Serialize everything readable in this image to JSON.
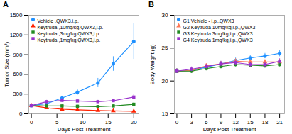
{
  "chart_data": [
    {
      "type": "line",
      "title": "A",
      "xlabel": "Days Post Treatment",
      "ylabel": "Tumor Size (mm³)",
      "xlim": [
        -0.5,
        21
      ],
      "ylim": [
        0,
        1500
      ],
      "xticks": [
        0,
        5,
        10,
        15,
        20
      ],
      "yticks": [
        0,
        300,
        600,
        900,
        1200,
        1500
      ],
      "legend": "upper left",
      "x": [
        0,
        3,
        6,
        9,
        13,
        16,
        20
      ],
      "series": [
        {
          "name": "Vehicle ,QWX3,i.p.",
          "color": "#1E90FF",
          "marker": "circle",
          "values": [
            125,
            155,
            240,
            330,
            470,
            760,
            1100
          ],
          "yerr": [
            15,
            20,
            30,
            45,
            70,
            110,
            270
          ]
        },
        {
          "name": "Keytruda ,10mg/kg,QWX3,i.p.",
          "color": "#FF2200",
          "marker": "triangle",
          "values": [
            125,
            90,
            70,
            60,
            50,
            45,
            40
          ],
          "yerr": [
            12,
            15,
            12,
            12,
            10,
            10,
            12
          ]
        },
        {
          "name": "Keytruda ,3mg/kg,QWX3,i.p.",
          "color": "#228B22",
          "marker": "square",
          "values": [
            125,
            120,
            120,
            115,
            110,
            120,
            145
          ],
          "yerr": [
            12,
            15,
            18,
            18,
            18,
            18,
            25
          ]
        },
        {
          "name": "Keytruda ,1mg/kg,QWX3,i.p.",
          "color": "#9932CC",
          "marker": "square",
          "values": [
            125,
            185,
            205,
            195,
            185,
            200,
            255
          ],
          "yerr": [
            12,
            22,
            28,
            22,
            22,
            25,
            38
          ]
        }
      ]
    },
    {
      "type": "line",
      "title": "B",
      "xlabel": "Days Post Treatment",
      "ylabel": "Body Weight (g)",
      "xlim": [
        -0.5,
        22
      ],
      "ylim": [
        15,
        30
      ],
      "xticks": [
        0,
        3,
        6,
        9,
        12,
        15,
        18,
        21
      ],
      "yticks": [
        15,
        20,
        25,
        30
      ],
      "legend": "upper left",
      "x": [
        0,
        3,
        6,
        9,
        12,
        15,
        18,
        21
      ],
      "series": [
        {
          "name": "G1 Vehicle - i.p.,QWX3",
          "color": "#1E90FF",
          "marker": "circle",
          "values": [
            21.5,
            21.6,
            22.1,
            22.6,
            23.1,
            23.5,
            23.8,
            24.2
          ],
          "yerr": [
            0.35,
            0.35,
            0.35,
            0.4,
            0.4,
            0.4,
            0.4,
            0.5
          ]
        },
        {
          "name": "G2 Keytruda 10mg/kg,i.p.,QWX3",
          "color": "#FF7755",
          "marker": "triangle",
          "values": [
            21.5,
            21.6,
            22.3,
            22.6,
            23.0,
            22.9,
            22.9,
            22.9
          ],
          "yerr": [
            0.35,
            0.35,
            0.35,
            0.4,
            0.4,
            0.35,
            0.35,
            0.4
          ]
        },
        {
          "name": "G3 Keytruda 3mg/kg,i.p.,QWX3",
          "color": "#228B22",
          "marker": "square",
          "values": [
            21.5,
            21.5,
            21.9,
            22.2,
            22.5,
            22.4,
            22.3,
            22.5
          ],
          "yerr": [
            0.35,
            0.35,
            0.35,
            0.35,
            0.35,
            0.35,
            0.35,
            0.35
          ]
        },
        {
          "name": "G4 Keytruda 1mg/kg,i.p.,QWX3",
          "color": "#9932CC",
          "marker": "square",
          "values": [
            21.5,
            21.8,
            22.2,
            22.6,
            22.8,
            22.5,
            22.5,
            23.0
          ],
          "yerr": [
            0.35,
            0.35,
            0.35,
            0.4,
            0.4,
            0.4,
            0.4,
            0.4
          ]
        }
      ]
    }
  ]
}
